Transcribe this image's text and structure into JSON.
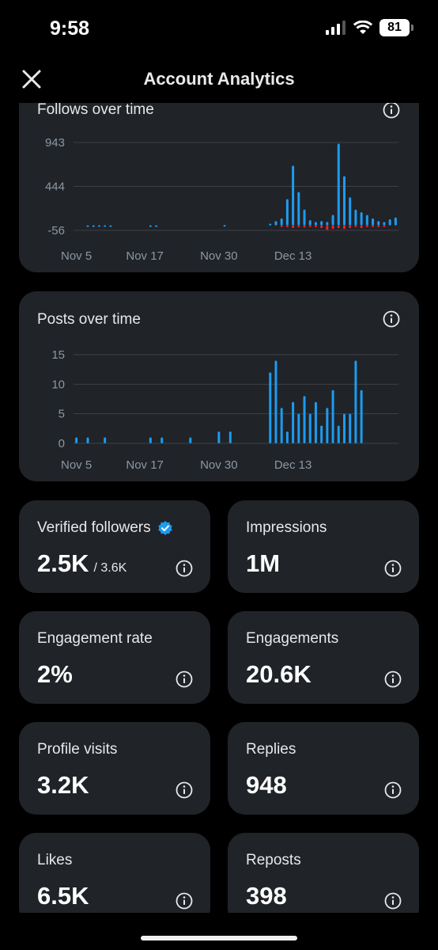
{
  "status_bar": {
    "time": "9:58",
    "battery": "81"
  },
  "header": {
    "title": "Account Analytics"
  },
  "cards": {
    "follows": {
      "title": "Follows over time"
    },
    "posts": {
      "title": "Posts over time"
    }
  },
  "chart_data": [
    {
      "type": "bar",
      "title": "Follows over time",
      "xlabel": "",
      "ylabel": "",
      "ylim": [
        -56,
        943
      ],
      "y_ticks": [
        "943",
        "444",
        "-56"
      ],
      "x_ticks": [
        "Nov 5",
        "Nov 17",
        "Nov 30",
        "Dec 13"
      ],
      "x_labels": [
        "Nov 5",
        "",
        "",
        "",
        "",
        "",
        "",
        "",
        "",
        "",
        "",
        "",
        "Nov 17",
        "",
        "",
        "",
        "",
        "",
        "",
        "",
        "",
        "",
        "",
        "",
        "",
        "Nov 30",
        "",
        "",
        "",
        "",
        "",
        "",
        "",
        "",
        "",
        "",
        "",
        "",
        "Dec 13",
        "",
        "",
        "",
        "",
        "",
        "",
        "",
        "",
        "",
        "",
        "",
        "",
        ""
      ],
      "series": [
        {
          "values": [
            0,
            0,
            1,
            1,
            2,
            2,
            1,
            0,
            0,
            0,
            0,
            0,
            0,
            1,
            1,
            0,
            0,
            0,
            0,
            0,
            0,
            0,
            0,
            0,
            0,
            0,
            5,
            0,
            0,
            0,
            0,
            0,
            0,
            0,
            20,
            50,
            80,
            300,
            680,
            380,
            180,
            60,
            40,
            50,
            40,
            120,
            930,
            560,
            320,
            180,
            150,
            120,
            80,
            50,
            40,
            70,
            90
          ]
        },
        {
          "values": [
            0,
            0,
            0,
            0,
            0,
            0,
            0,
            0,
            0,
            0,
            0,
            0,
            0,
            0,
            0,
            0,
            0,
            0,
            0,
            0,
            0,
            0,
            0,
            0,
            0,
            0,
            0,
            0,
            0,
            0,
            0,
            0,
            0,
            0,
            0,
            0,
            -10,
            -20,
            -30,
            -20,
            -25,
            -10,
            -20,
            -30,
            -50,
            -40,
            -30,
            -40,
            -30,
            -20,
            -30,
            -20,
            -10,
            -20,
            -10,
            0,
            0
          ]
        }
      ]
    },
    {
      "type": "bar",
      "title": "Posts over time",
      "xlabel": "",
      "ylabel": "",
      "ylim": [
        0,
        15
      ],
      "y_ticks": [
        "15",
        "10",
        "5",
        "0"
      ],
      "x_ticks": [
        "Nov 5",
        "Nov 17",
        "Nov 30",
        "Dec 13"
      ],
      "x_labels": [
        "Nov 5",
        "",
        "",
        "",
        "",
        "",
        "",
        "",
        "",
        "",
        "",
        "",
        "Nov 17",
        "",
        "",
        "",
        "",
        "",
        "",
        "",
        "",
        "",
        "",
        "",
        "",
        "Nov 30",
        "",
        "",
        "",
        "",
        "",
        "",
        "",
        "",
        "",
        "",
        "",
        "",
        "Dec 13",
        "",
        "",
        "",
        "",
        "",
        "",
        "",
        "",
        "",
        "",
        "",
        "",
        ""
      ],
      "series": [
        {
          "values": [
            1,
            0,
            1,
            0,
            0,
            1,
            0,
            0,
            0,
            0,
            0,
            0,
            0,
            1,
            0,
            1,
            0,
            0,
            0,
            0,
            1,
            0,
            0,
            0,
            0,
            2,
            0,
            2,
            0,
            0,
            0,
            0,
            0,
            0,
            12,
            14,
            6,
            2,
            7,
            5,
            8,
            5,
            7,
            3,
            6,
            9,
            3,
            5,
            5,
            14,
            9,
            0,
            0,
            0,
            0,
            0,
            0
          ]
        }
      ]
    }
  ],
  "stats": [
    {
      "label": "Verified followers",
      "value": "2.5K",
      "sub": "/ 3.6K",
      "verified": true
    },
    {
      "label": "Impressions",
      "value": "1M"
    },
    {
      "label": "Engagement rate",
      "value": "2%"
    },
    {
      "label": "Engagements",
      "value": "20.6K"
    },
    {
      "label": "Profile visits",
      "value": "3.2K"
    },
    {
      "label": "Replies",
      "value": "948"
    },
    {
      "label": "Likes",
      "value": "6.5K"
    },
    {
      "label": "Reposts",
      "value": "398"
    }
  ],
  "colors": {
    "bar_positive": "#1d9bf0",
    "bar_negative": "#f4212e",
    "card": "#202327",
    "verified": "#1d9bf0"
  }
}
